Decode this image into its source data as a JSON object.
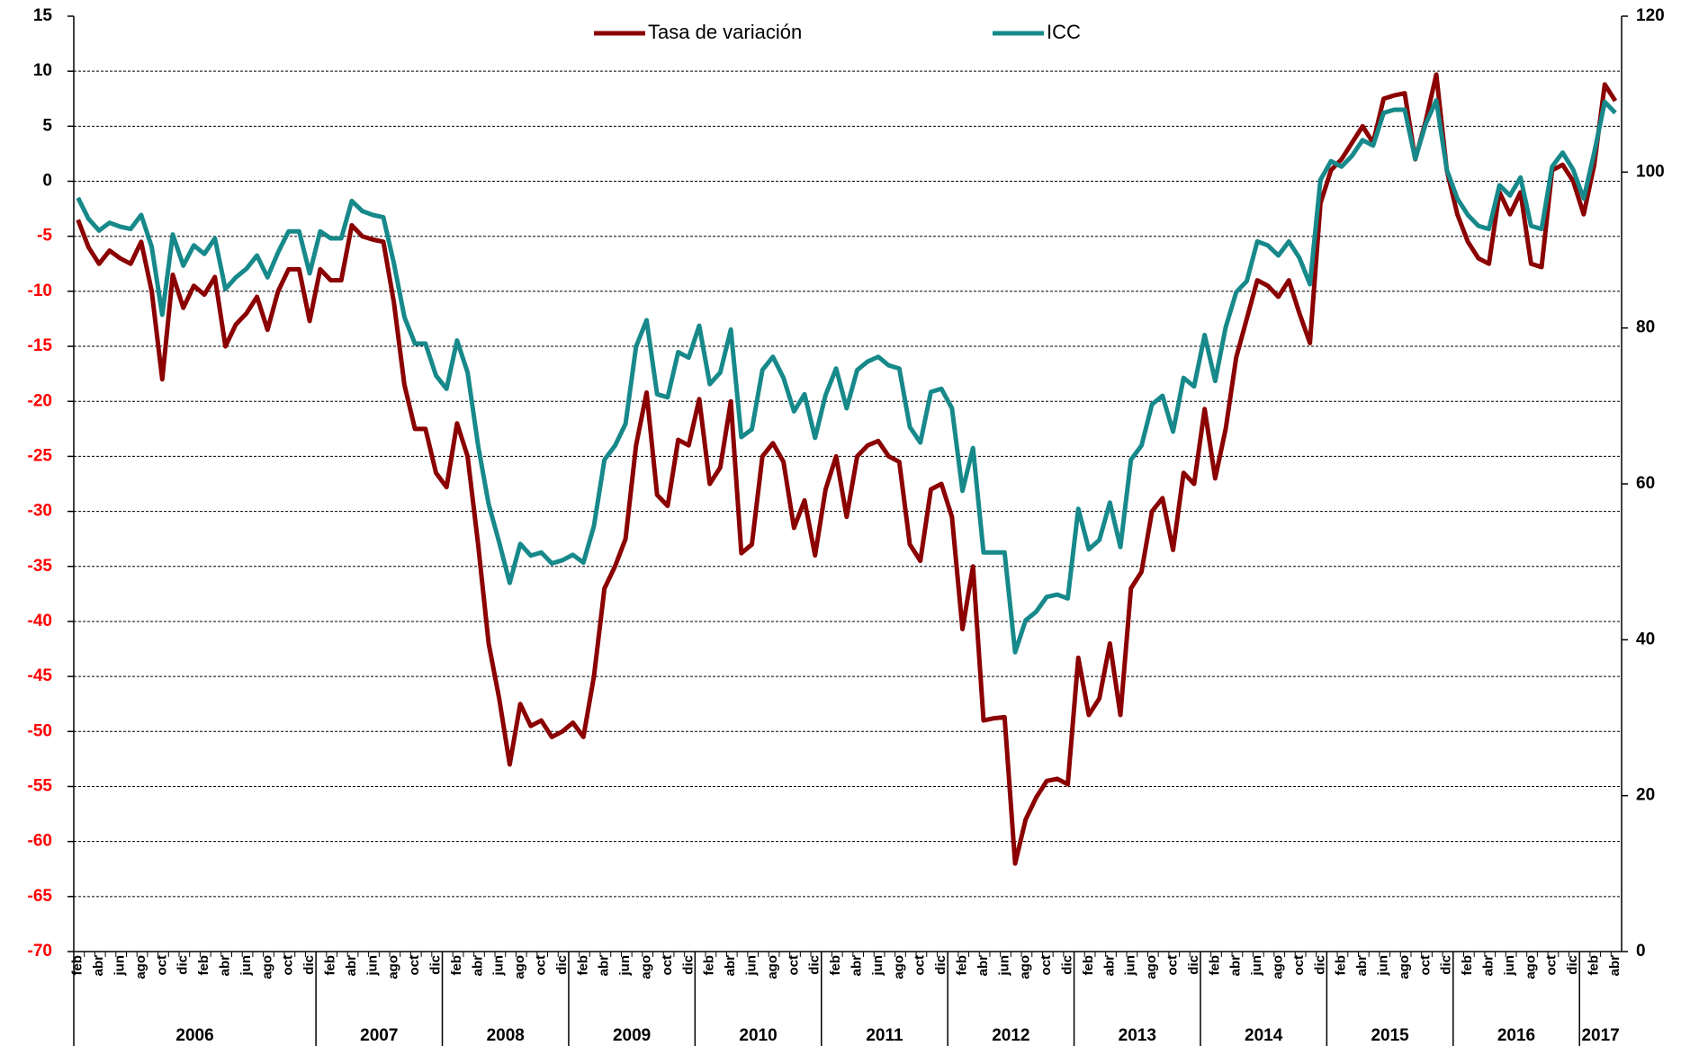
{
  "chart_data": {
    "type": "line",
    "categories": [
      "feb",
      null,
      "abr",
      null,
      "jun",
      null,
      "ago",
      null,
      "oct",
      null,
      "dic",
      null,
      "feb",
      null,
      "abr",
      null,
      "jun",
      null,
      "ago",
      null,
      "oct",
      null,
      "dic",
      null,
      "feb",
      null,
      "abr",
      null,
      "jun",
      null,
      "ago",
      null,
      "oct",
      null,
      "dic",
      null,
      "feb",
      null,
      "abr",
      null,
      "jun",
      null,
      "ago",
      null,
      "oct",
      null,
      "dic",
      null,
      "feb",
      null,
      "abr",
      null,
      "jun",
      null,
      "ago",
      null,
      "oct",
      null,
      "dic",
      null,
      "feb",
      null,
      "abr",
      null,
      "jun",
      null,
      "ago",
      null,
      "oct",
      null,
      "dic",
      null,
      "feb",
      null,
      "abr",
      null,
      "jun",
      null,
      "ago",
      null,
      "oct",
      null,
      "dic",
      null,
      "feb",
      null,
      "abr",
      null,
      "jun",
      null,
      "ago",
      null,
      "oct",
      null,
      "dic",
      null,
      "feb",
      null,
      "abr",
      null,
      "jun",
      null,
      "ago",
      null,
      "oct",
      null,
      "dic",
      null,
      "feb",
      null,
      "abr",
      null,
      "jun",
      null,
      "ago",
      null,
      "oct",
      null,
      "dic",
      null,
      "feb",
      null,
      "abr",
      null,
      "jun",
      null,
      "ago",
      null,
      "oct",
      null,
      "dic",
      null,
      "feb",
      null,
      "abr",
      null,
      "jun",
      null,
      "ago",
      null,
      "oct",
      null,
      "dic",
      null,
      "feb",
      null,
      "abr"
    ],
    "year_labels": [
      "2006",
      "2007",
      "2008",
      "2009",
      "2010",
      "2011",
      "2012",
      "2013",
      "2014",
      "2015",
      "2016",
      "2017"
    ],
    "series": [
      {
        "name": "Tasa de variación",
        "color": "#8B0000",
        "values": [
          -3.5,
          -6,
          -7.5,
          -6.3,
          -7,
          -7.5,
          -5.5,
          -10,
          -18,
          -8.5,
          -11.5,
          -9.5,
          -10.3,
          -8.7,
          -15,
          -13,
          -12,
          -10.5,
          -13.5,
          -10,
          -8,
          -8,
          -12.7,
          -8,
          -9,
          -9,
          -4,
          -5,
          -5.3,
          -5.5,
          -11,
          -18.5,
          -22.5,
          -22.5,
          -26.5,
          -27.8,
          -22,
          -25,
          -33,
          -42,
          -47,
          -53,
          -47.5,
          -49.5,
          -49,
          -50.5,
          -50,
          -49.2,
          -50.5,
          -45,
          -37,
          -35,
          -32.5,
          -24,
          -19.2,
          -28.5,
          -29.5,
          -23.5,
          -24,
          -19.8,
          -27.5,
          -26,
          -20,
          -33.8,
          -33,
          -25,
          -23.8,
          -25.5,
          -31.5,
          -29,
          -34,
          -28,
          -25,
          -30.5,
          -25,
          -24,
          -23.6,
          -25,
          -25.5,
          -33,
          -34.5,
          -28,
          -27.5,
          -30.5,
          -40.7,
          -35,
          -49,
          -48.8,
          -48.7,
          -62,
          -58,
          -56,
          -54.5,
          -54.3,
          -54.8,
          -43.3,
          -48.5,
          -47,
          -42,
          -48.5,
          -37,
          -35.5,
          -30,
          -28.8,
          -33.5,
          -26.5,
          -27.5,
          -20.7,
          -27,
          -22.5,
          -16,
          -12.5,
          -9,
          -9.5,
          -10.5,
          -9,
          -12,
          -14.7,
          -2,
          1,
          2,
          3.5,
          5,
          3.5,
          7.5,
          7.8,
          8,
          2,
          5.5,
          9.7,
          1,
          -3,
          -5.5,
          -7,
          -7.5,
          -1,
          -3,
          -1,
          -7.5,
          -7.8,
          1,
          1.5,
          0,
          -3,
          1.5,
          8.8,
          7.3
        ]
      },
      {
        "name": "ICC",
        "color": "#17898A",
        "axis": "y2",
        "values": [
          96.7,
          94,
          92.5,
          93.5,
          93,
          92.7,
          94.5,
          90.4,
          81.7,
          92,
          88,
          90.6,
          89.5,
          91.5,
          85,
          86.5,
          87.6,
          89.3,
          86.5,
          89.7,
          92.4,
          92.4,
          87,
          92.4,
          91.5,
          91.5,
          96.3,
          95,
          94.5,
          94.2,
          88.3,
          81.4,
          78,
          78,
          73.9,
          72.2,
          78.4,
          74.3,
          64.9,
          57.4,
          52.5,
          47.3,
          52.3,
          50.8,
          51.2,
          49.8,
          50.2,
          50.9,
          49.9,
          54.6,
          63.1,
          64.9,
          67.7,
          77.6,
          81,
          71.5,
          71.1,
          76.9,
          76.2,
          80.3,
          72.8,
          74.3,
          79.8,
          66,
          67,
          74.6,
          76.3,
          73.6,
          69.3,
          71.5,
          65.9,
          71.4,
          74.8,
          69.7,
          74.6,
          75.7,
          76.3,
          75.2,
          74.8,
          67.3,
          65.3,
          71.8,
          72.2,
          69.7,
          59.1,
          64.6,
          51.2,
          51.2,
          51.2,
          38.4,
          42.5,
          43.6,
          45.5,
          45.8,
          45.3,
          56.8,
          51.6,
          52.8,
          57.6,
          51.9,
          63.1,
          64.9,
          70.2,
          71.3,
          66.7,
          73.6,
          72.5,
          79.1,
          73.2,
          80.1,
          84.6,
          86,
          91.1,
          90.6,
          89.3,
          91.1,
          89,
          85.6,
          99,
          101.4,
          100.7,
          102.1,
          104.1,
          103.4,
          107.6,
          108,
          108,
          101.7,
          106.2,
          109.2,
          100.3,
          96.6,
          94.5,
          93.1,
          92.7,
          98.3,
          97,
          99.3,
          93.1,
          92.7,
          100.7,
          102.5,
          100.3,
          96.6,
          102.5,
          109,
          107.6
        ]
      }
    ],
    "ylim": [
      -70,
      15
    ],
    "yticks": [
      -70,
      -65,
      -60,
      -55,
      -50,
      -45,
      -40,
      -35,
      -30,
      -25,
      -20,
      -15,
      -10,
      -5,
      0,
      5,
      10,
      15
    ],
    "y2lim": [
      0,
      120
    ],
    "y2ticks": [
      0,
      20,
      40,
      60,
      80,
      100,
      120
    ],
    "grid": true,
    "legend": "top",
    "negative_tick_color": "#FF0000"
  }
}
